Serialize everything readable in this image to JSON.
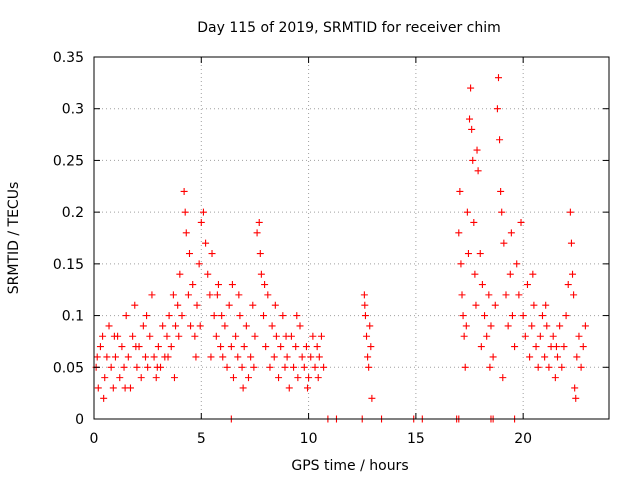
{
  "chart_data": {
    "type": "scatter",
    "title": "Day 115 of 2019, SRMTID for receiver chim",
    "xlabel": "GPS time / hours",
    "ylabel": "SRMTID / TECUs",
    "xlim": [
      0,
      24
    ],
    "ylim": [
      0,
      0.35
    ],
    "grid": true,
    "marker": "+",
    "series_color": "#ff0000",
    "x_ticks": [
      {
        "value": 0,
        "label": "0"
      },
      {
        "value": 5,
        "label": "5"
      },
      {
        "value": 10,
        "label": "10"
      },
      {
        "value": 15,
        "label": "15"
      },
      {
        "value": 20,
        "label": "20"
      }
    ],
    "y_ticks": [
      {
        "value": 0,
        "label": "0"
      },
      {
        "value": 0.05,
        "label": "0.05"
      },
      {
        "value": 0.1,
        "label": "0.1"
      },
      {
        "value": 0.15,
        "label": "0.15"
      },
      {
        "value": 0.2,
        "label": "0.2"
      },
      {
        "value": 0.25,
        "label": "0.25"
      },
      {
        "value": 0.3,
        "label": "0.3"
      },
      {
        "value": 0.35,
        "label": "0.35"
      }
    ],
    "points": [
      [
        0.1,
        0.05
      ],
      [
        0.2,
        0.03
      ],
      [
        0.3,
        0.07
      ],
      [
        0.4,
        0.08
      ],
      [
        0.5,
        0.04
      ],
      [
        0.6,
        0.06
      ],
      [
        0.7,
        0.09
      ],
      [
        0.8,
        0.05
      ],
      [
        0.9,
        0.03
      ],
      [
        1.0,
        0.06
      ],
      [
        1.1,
        0.08
      ],
      [
        1.2,
        0.04
      ],
      [
        1.3,
        0.07
      ],
      [
        1.4,
        0.05
      ],
      [
        1.5,
        0.1
      ],
      [
        1.6,
        0.06
      ],
      [
        1.7,
        0.03
      ],
      [
        1.8,
        0.08
      ],
      [
        1.9,
        0.11
      ],
      [
        2.0,
        0.05
      ],
      [
        2.1,
        0.07
      ],
      [
        2.2,
        0.04
      ],
      [
        2.3,
        0.09
      ],
      [
        2.4,
        0.06
      ],
      [
        2.5,
        0.05
      ],
      [
        2.6,
        0.08
      ],
      [
        2.7,
        0.12
      ],
      [
        2.8,
        0.06
      ],
      [
        2.9,
        0.04
      ],
      [
        3.0,
        0.07
      ],
      [
        3.1,
        0.05
      ],
      [
        3.2,
        0.09
      ],
      [
        3.3,
        0.06
      ],
      [
        3.4,
        0.08
      ],
      [
        3.5,
        0.1
      ],
      [
        3.6,
        0.07
      ],
      [
        3.7,
        0.12
      ],
      [
        3.8,
        0.09
      ],
      [
        3.9,
        0.11
      ],
      [
        4.0,
        0.14
      ],
      [
        4.1,
        0.1
      ],
      [
        4.2,
        0.22
      ],
      [
        4.25,
        0.2
      ],
      [
        4.3,
        0.18
      ],
      [
        4.4,
        0.12
      ],
      [
        4.5,
        0.09
      ],
      [
        4.6,
        0.13
      ],
      [
        4.7,
        0.08
      ],
      [
        4.8,
        0.11
      ],
      [
        4.9,
        0.15
      ],
      [
        5.0,
        0.19
      ],
      [
        5.1,
        0.2
      ],
      [
        5.2,
        0.17
      ],
      [
        5.3,
        0.14
      ],
      [
        5.4,
        0.12
      ],
      [
        5.5,
        0.16
      ],
      [
        5.6,
        0.1
      ],
      [
        5.7,
        0.08
      ],
      [
        5.8,
        0.13
      ],
      [
        5.9,
        0.07
      ],
      [
        6.0,
        0.06
      ],
      [
        6.1,
        0.09
      ],
      [
        6.2,
        0.05
      ],
      [
        6.3,
        0.11
      ],
      [
        6.4,
        0.07
      ],
      [
        6.5,
        0.04
      ],
      [
        6.6,
        0.08
      ],
      [
        6.7,
        0.06
      ],
      [
        6.8,
        0.1
      ],
      [
        6.9,
        0.05
      ],
      [
        7.0,
        0.07
      ],
      [
        7.1,
        0.09
      ],
      [
        7.2,
        0.04
      ],
      [
        7.3,
        0.06
      ],
      [
        7.4,
        0.11
      ],
      [
        7.5,
        0.08
      ],
      [
        7.6,
        0.18
      ],
      [
        7.7,
        0.19
      ],
      [
        7.8,
        0.14
      ],
      [
        7.9,
        0.1
      ],
      [
        8.0,
        0.07
      ],
      [
        8.1,
        0.12
      ],
      [
        8.2,
        0.05
      ],
      [
        8.3,
        0.09
      ],
      [
        8.4,
        0.06
      ],
      [
        8.5,
        0.08
      ],
      [
        8.6,
        0.04
      ],
      [
        8.7,
        0.07
      ],
      [
        8.8,
        0.1
      ],
      [
        8.9,
        0.05
      ],
      [
        9.0,
        0.06
      ],
      [
        9.1,
        0.03
      ],
      [
        9.2,
        0.08
      ],
      [
        9.3,
        0.05
      ],
      [
        9.4,
        0.07
      ],
      [
        9.5,
        0.04
      ],
      [
        9.6,
        0.09
      ],
      [
        9.7,
        0.06
      ],
      [
        9.8,
        0.05
      ],
      [
        9.9,
        0.07
      ],
      [
        10.0,
        0.04
      ],
      [
        10.1,
        0.06
      ],
      [
        10.2,
        0.08
      ],
      [
        10.3,
        0.05
      ],
      [
        10.4,
        0.07
      ],
      [
        10.5,
        0.06
      ],
      [
        10.6,
        0.08
      ],
      [
        10.7,
        0.05
      ],
      [
        0.15,
        0.06
      ],
      [
        0.45,
        0.02
      ],
      [
        0.95,
        0.08
      ],
      [
        1.45,
        0.03
      ],
      [
        1.95,
        0.07
      ],
      [
        2.45,
        0.1
      ],
      [
        2.95,
        0.05
      ],
      [
        3.45,
        0.06
      ],
      [
        3.95,
        0.08
      ],
      [
        4.45,
        0.16
      ],
      [
        4.95,
        0.09
      ],
      [
        5.45,
        0.06
      ],
      [
        5.95,
        0.1
      ],
      [
        6.45,
        0.13
      ],
      [
        6.95,
        0.03
      ],
      [
        7.45,
        0.05
      ],
      [
        7.95,
        0.13
      ],
      [
        8.45,
        0.11
      ],
      [
        8.95,
        0.08
      ],
      [
        9.45,
        0.1
      ],
      [
        9.95,
        0.03
      ],
      [
        10.45,
        0.04
      ],
      [
        3.75,
        0.04
      ],
      [
        4.75,
        0.06
      ],
      [
        5.75,
        0.12
      ],
      [
        6.75,
        0.12
      ],
      [
        7.75,
        0.16
      ],
      [
        12.6,
        0.12
      ],
      [
        12.65,
        0.1
      ],
      [
        12.7,
        0.08
      ],
      [
        12.75,
        0.06
      ],
      [
        12.8,
        0.05
      ],
      [
        12.85,
        0.09
      ],
      [
        12.9,
        0.07
      ],
      [
        12.95,
        0.02
      ],
      [
        12.62,
        0.11
      ],
      [
        17.0,
        0.18
      ],
      [
        17.05,
        0.22
      ],
      [
        17.1,
        0.15
      ],
      [
        17.15,
        0.12
      ],
      [
        17.2,
        0.1
      ],
      [
        17.25,
        0.08
      ],
      [
        17.3,
        0.05
      ],
      [
        17.35,
        0.09
      ],
      [
        17.4,
        0.2
      ],
      [
        17.5,
        0.29
      ],
      [
        17.55,
        0.32
      ],
      [
        17.6,
        0.28
      ],
      [
        17.65,
        0.25
      ],
      [
        17.7,
        0.19
      ],
      [
        17.75,
        0.14
      ],
      [
        17.8,
        0.11
      ],
      [
        17.85,
        0.26
      ],
      [
        17.9,
        0.24
      ],
      [
        18.0,
        0.16
      ],
      [
        18.1,
        0.13
      ],
      [
        18.2,
        0.1
      ],
      [
        18.3,
        0.08
      ],
      [
        18.4,
        0.12
      ],
      [
        18.5,
        0.09
      ],
      [
        18.6,
        0.06
      ],
      [
        18.7,
        0.11
      ],
      [
        18.8,
        0.3
      ],
      [
        18.85,
        0.33
      ],
      [
        18.9,
        0.27
      ],
      [
        18.95,
        0.22
      ],
      [
        19.0,
        0.2
      ],
      [
        19.1,
        0.17
      ],
      [
        19.2,
        0.12
      ],
      [
        19.3,
        0.09
      ],
      [
        19.4,
        0.14
      ],
      [
        19.5,
        0.1
      ],
      [
        19.6,
        0.07
      ],
      [
        19.7,
        0.15
      ],
      [
        19.8,
        0.12
      ],
      [
        19.9,
        0.19
      ],
      [
        20.0,
        0.1
      ],
      [
        20.1,
        0.08
      ],
      [
        20.2,
        0.13
      ],
      [
        20.3,
        0.06
      ],
      [
        20.4,
        0.09
      ],
      [
        20.5,
        0.11
      ],
      [
        20.6,
        0.07
      ],
      [
        20.7,
        0.05
      ],
      [
        20.8,
        0.08
      ],
      [
        20.9,
        0.1
      ],
      [
        21.0,
        0.06
      ],
      [
        21.1,
        0.09
      ],
      [
        21.2,
        0.05
      ],
      [
        21.3,
        0.07
      ],
      [
        21.4,
        0.08
      ],
      [
        21.5,
        0.04
      ],
      [
        21.6,
        0.06
      ],
      [
        21.7,
        0.09
      ],
      [
        21.8,
        0.05
      ],
      [
        21.9,
        0.07
      ],
      [
        22.0,
        0.1
      ],
      [
        22.1,
        0.13
      ],
      [
        22.2,
        0.2
      ],
      [
        22.25,
        0.17
      ],
      [
        22.3,
        0.14
      ],
      [
        22.35,
        0.12
      ],
      [
        22.4,
        0.03
      ],
      [
        22.45,
        0.02
      ],
      [
        22.5,
        0.06
      ],
      [
        22.6,
        0.08
      ],
      [
        22.7,
        0.05
      ],
      [
        22.8,
        0.07
      ],
      [
        22.9,
        0.09
      ],
      [
        17.45,
        0.16
      ],
      [
        18.05,
        0.07
      ],
      [
        18.45,
        0.05
      ],
      [
        19.05,
        0.04
      ],
      [
        19.45,
        0.18
      ],
      [
        20.45,
        0.14
      ],
      [
        21.05,
        0.11
      ],
      [
        21.55,
        0.07
      ],
      [
        6.4,
        0.0
      ],
      [
        10.9,
        0.0
      ],
      [
        11.3,
        0.0
      ],
      [
        12.5,
        0.0
      ],
      [
        13.4,
        0.0
      ],
      [
        14.9,
        0.0
      ],
      [
        15.3,
        0.0
      ],
      [
        16.9,
        0.0
      ],
      [
        17.0,
        0.0
      ],
      [
        18.5,
        0.0
      ],
      [
        18.6,
        0.0
      ],
      [
        19.6,
        0.0
      ]
    ]
  }
}
